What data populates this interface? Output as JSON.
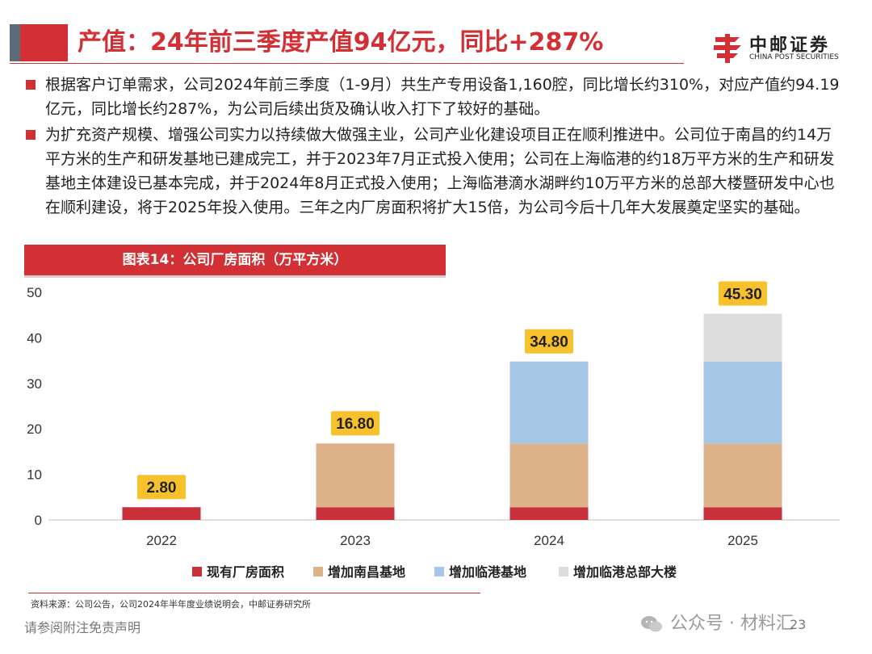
{
  "header": {
    "title": "产值：24年前三季度产值94亿元，同比+287%",
    "logo_cn": "中邮证券",
    "logo_en": "CHINA POST SECURITIES",
    "logo_icon": "china-post-emblem"
  },
  "bullets": [
    "根据客户订单需求，公司2024年前三季度（1-9月）共生产专用设备1,160腔，同比增长约310%，对应产值约94.19亿元，同比增长约287%，为公司后续出货及确认收入打下了较好的基础。",
    "为扩充资产规模、增强公司实力以持续做大做强主业，公司产业化建设项目正在顺利推进中。公司位于南昌的约14万平方米的生产和研发基地已建成完工，并于2023年7月正式投入使用；公司在上海临港的约18万平方米的生产和研发基地主体建设已基本完成，并于2024年8月正式投入使用；上海临港滴水湖畔约10万平方米的总部大楼暨研发中心也在顺利建设，将于2025年投入使用。三年之内厂房面积将扩大15倍，为公司今后十几年大发展奠定坚实的基础。"
  ],
  "figure": {
    "title": "图表14：公司厂房面积（万平方米）"
  },
  "chart_data": {
    "type": "bar",
    "stacked": true,
    "categories": [
      "2022",
      "2023",
      "2024",
      "2025"
    ],
    "series": [
      {
        "name": "现有厂房面积",
        "color": "#c8313a",
        "values": [
          2.8,
          2.8,
          2.8,
          2.8
        ]
      },
      {
        "name": "增加南昌基地",
        "color": "#dcb288",
        "values": [
          0,
          14,
          14,
          14
        ]
      },
      {
        "name": "增加临港基地",
        "color": "#a6c6e6",
        "values": [
          0,
          0,
          18,
          18
        ]
      },
      {
        "name": "增加临港总部大楼",
        "color": "#dcdcdc",
        "values": [
          0,
          0,
          0,
          10.5
        ]
      }
    ],
    "totals": [
      "2.80",
      "16.80",
      "34.80",
      "45.30"
    ],
    "total_label_color": "#f7c12e",
    "ylim": [
      0,
      50
    ],
    "yticks": [
      "0",
      "10",
      "20",
      "30",
      "40",
      "50"
    ],
    "grid": false,
    "legend": "bottom"
  },
  "footer": {
    "source": "资料来源：公司公告，公司2024年半年度业绩说明会，中邮证券研究所",
    "disclaimer": "请参阅附注免责声明",
    "watermark": "公众号 · 材料汇",
    "watermark_icon": "wechat-icon",
    "page": "23"
  }
}
